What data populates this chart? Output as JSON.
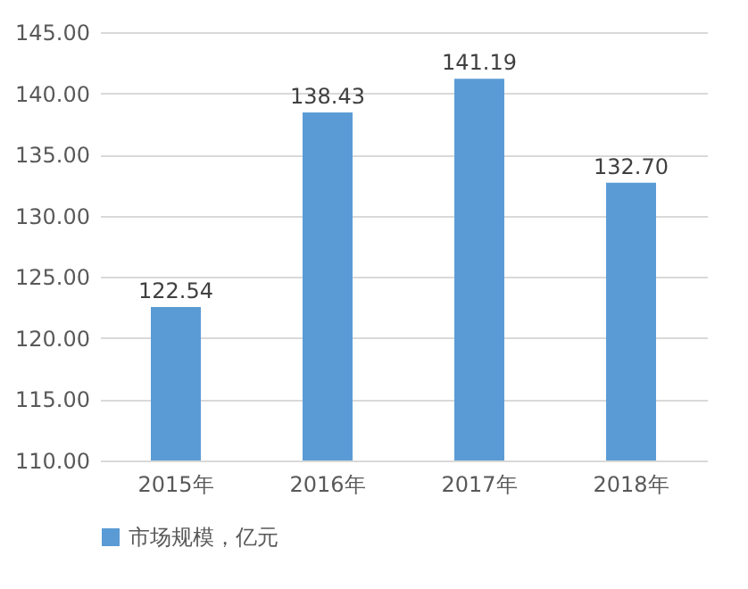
{
  "chart_data": {
    "type": "bar",
    "categories": [
      "2015年",
      "2016年",
      "2017年",
      "2018年"
    ],
    "series": [
      {
        "name": "市场规模，亿元",
        "color": "#5b9bd5",
        "values": [
          122.54,
          138.43,
          141.19,
          132.7
        ],
        "value_labels": [
          "122.54",
          "138.43",
          "141.19",
          "132.70"
        ]
      }
    ],
    "ylim": [
      110,
      145
    ],
    "yticks": [
      {
        "value": 110,
        "label": "110.00"
      },
      {
        "value": 115,
        "label": "115.00"
      },
      {
        "value": 120,
        "label": "120.00"
      },
      {
        "value": 125,
        "label": "125.00"
      },
      {
        "value": 130,
        "label": "130.00"
      },
      {
        "value": 135,
        "label": "135.00"
      },
      {
        "value": 140,
        "label": "140.00"
      },
      {
        "value": 145,
        "label": "145.00"
      }
    ],
    "grid": "y",
    "legend": "bottom"
  }
}
